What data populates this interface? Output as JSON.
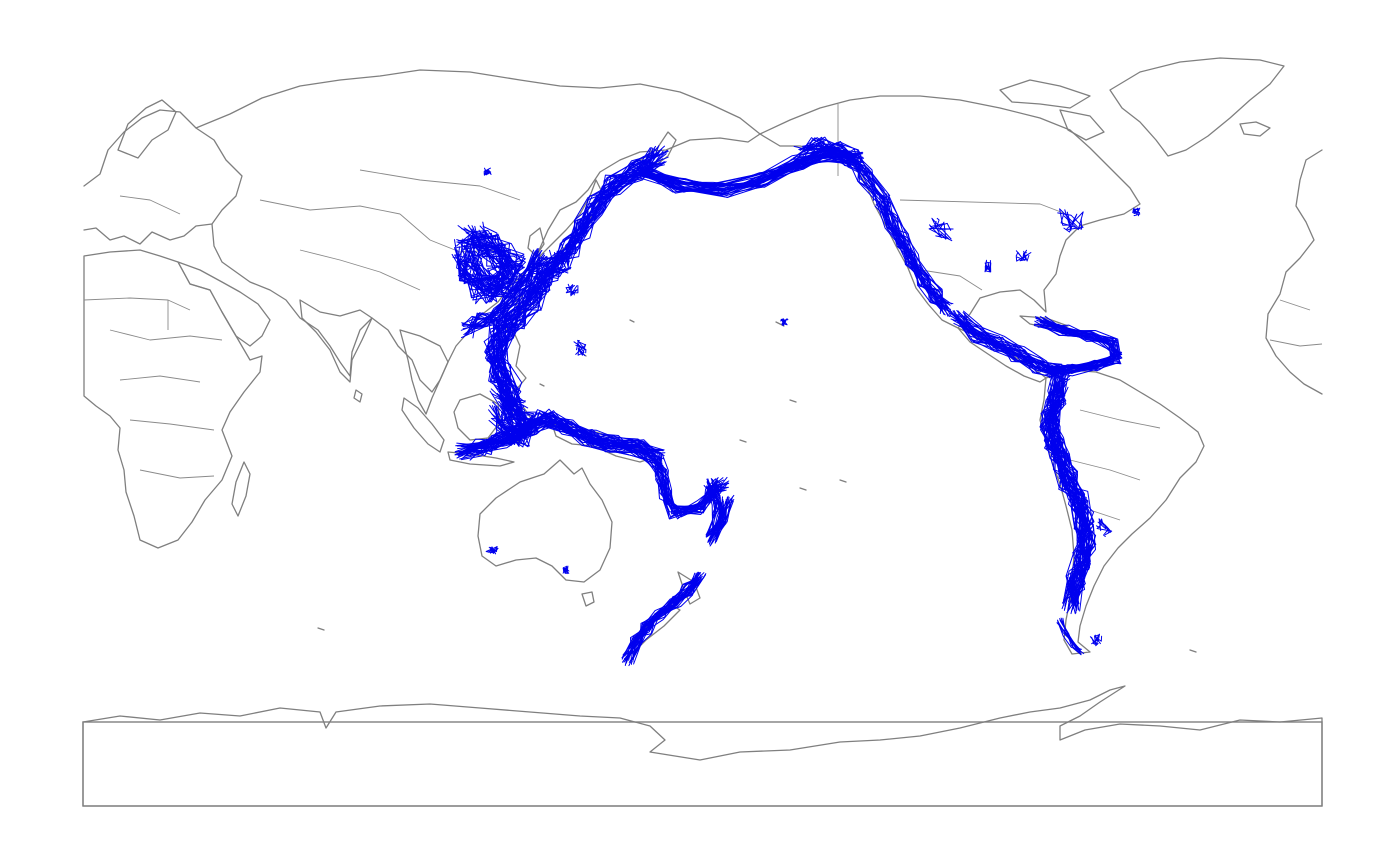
{
  "map": {
    "projection": "equirectangular-pacific-centered",
    "central_meridian_deg": 150,
    "line_color": "#0000ee",
    "land_outline_color": "#7f7f7f",
    "background_color": "#ffffff"
  }
}
